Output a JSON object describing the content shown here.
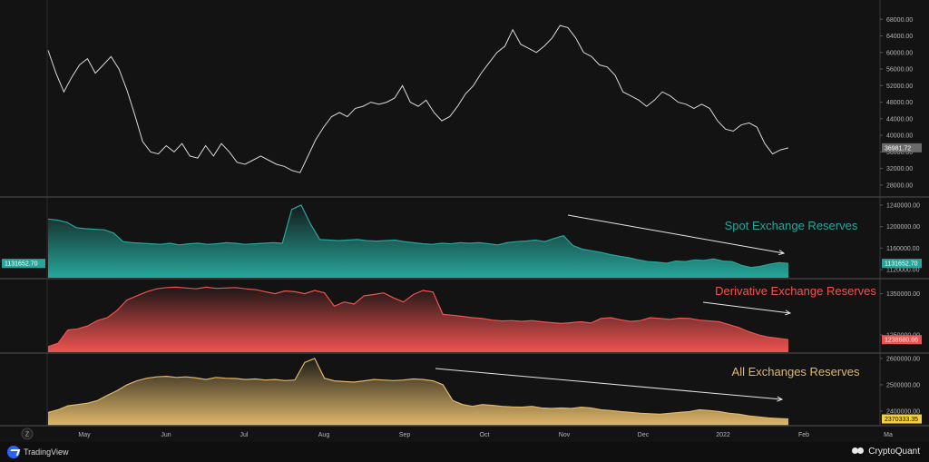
{
  "chart_data": [
    {
      "type": "line",
      "ylabel": "",
      "ylim": [
        26000,
        72000
      ],
      "yticks": [
        28000,
        32000,
        36000,
        40000,
        44000,
        48000,
        52000,
        56000,
        60000,
        64000,
        68000,
        72000
      ],
      "ytick_labels": [
        "28000.00",
        "32000.00",
        "36000.00",
        "40000.00",
        "44000.00",
        "48000.00",
        "52000.00",
        "56000.00",
        "60000.00",
        "64000.00",
        "68000.00",
        "72000.00"
      ],
      "last_value_label": "36981.72",
      "series": [
        {
          "color": "#d9d9d9",
          "values": [
            60500,
            55000,
            50500,
            54000,
            57000,
            58500,
            55000,
            57000,
            59000,
            56000,
            51000,
            45000,
            38500,
            36000,
            35500,
            37500,
            36000,
            38000,
            35000,
            34500,
            37500,
            35000,
            38000,
            36000,
            33500,
            33000,
            34000,
            35000,
            34000,
            33000,
            32500,
            31500,
            31000,
            35000,
            39000,
            42000,
            44500,
            45500,
            44500,
            46500,
            47000,
            48000,
            47500,
            48000,
            49000,
            52000,
            48000,
            47000,
            48500,
            45500,
            43500,
            44500,
            47000,
            50000,
            52000,
            55000,
            57500,
            60000,
            61500,
            65500,
            62000,
            61000,
            60000,
            61500,
            63500,
            66500,
            66000,
            63500,
            60000,
            59000,
            57000,
            56500,
            54500,
            50500,
            49500,
            48500,
            47000,
            48500,
            50500,
            49500,
            48000,
            47500,
            46500,
            47500,
            46500,
            43500,
            41500,
            41000,
            42500,
            43000,
            42000,
            38000,
            35500,
            36500,
            36981.72
          ]
        }
      ]
    },
    {
      "type": "area",
      "title": "Spot Exchange Reserves",
      "ylim": [
        1110000,
        1250000
      ],
      "yticks": [
        1120000,
        1160000,
        1200000,
        1240000
      ],
      "ytick_labels": [
        "1120000.00",
        "1160000.00",
        "1200000.00",
        "1240000.00"
      ],
      "last_value_label": "1131652.70",
      "series": [
        {
          "color": "#26a69a",
          "values": [
            1214000,
            1212000,
            1208000,
            1198000,
            1196000,
            1195000,
            1194000,
            1188000,
            1172000,
            1170000,
            1169000,
            1168000,
            1167000,
            1169000,
            1166000,
            1168000,
            1169000,
            1167000,
            1168000,
            1170000,
            1169000,
            1167000,
            1168000,
            1169000,
            1170000,
            1169000,
            1232000,
            1240000,
            1205000,
            1176000,
            1175000,
            1174000,
            1175000,
            1176000,
            1174000,
            1173000,
            1174000,
            1175000,
            1172000,
            1170000,
            1168000,
            1167000,
            1169000,
            1168000,
            1170000,
            1169000,
            1170000,
            1168000,
            1166000,
            1170000,
            1172000,
            1173000,
            1175000,
            1172000,
            1178000,
            1183000,
            1165000,
            1158000,
            1155000,
            1152000,
            1148000,
            1145000,
            1142000,
            1138000,
            1135000,
            1134000,
            1132000,
            1136000,
            1135000,
            1138000,
            1137000,
            1140000,
            1136000,
            1135000,
            1128000,
            1124000,
            1126000,
            1130000,
            1133000,
            1131652.7
          ]
        }
      ],
      "arrow": "down"
    },
    {
      "type": "area",
      "title": "Derivative Exchange Reserves",
      "ylim": [
        1215000,
        1380000
      ],
      "yticks": [
        1250000,
        1350000
      ],
      "ytick_labels": [
        "1250000.00",
        "1350000.00"
      ],
      "last_value_label": "1238680.66",
      "series": [
        {
          "color": "#ef5350",
          "values": [
            1222000,
            1230000,
            1262000,
            1265000,
            1272000,
            1285000,
            1292000,
            1310000,
            1335000,
            1345000,
            1355000,
            1362000,
            1365000,
            1366000,
            1364000,
            1362000,
            1366000,
            1363000,
            1364000,
            1365000,
            1362000,
            1360000,
            1355000,
            1350000,
            1357000,
            1355000,
            1350000,
            1358000,
            1352000,
            1320000,
            1330000,
            1325000,
            1345000,
            1348000,
            1352000,
            1340000,
            1330000,
            1348000,
            1358000,
            1354000,
            1300000,
            1298000,
            1295000,
            1292000,
            1290000,
            1286000,
            1284000,
            1285000,
            1283000,
            1285000,
            1282000,
            1280000,
            1278000,
            1280000,
            1282000,
            1279000,
            1290000,
            1292000,
            1287000,
            1283000,
            1285000,
            1292000,
            1290000,
            1288000,
            1291000,
            1290000,
            1286000,
            1284000,
            1282000,
            1275000,
            1268000,
            1258000,
            1250000,
            1245000,
            1242000,
            1238680.66
          ]
        }
      ],
      "arrow": "down"
    },
    {
      "type": "area",
      "title": "All Exchanges Reserves",
      "ylim": [
        2355000,
        2610000
      ],
      "yticks": [
        2400000,
        2500000,
        2600000
      ],
      "ytick_labels": [
        "2400000.00",
        "2500000.00",
        "2600000.00"
      ],
      "last_value_label": "2370333.35",
      "series": [
        {
          "color": "#e0b86a",
          "values": [
            2395000,
            2405000,
            2420000,
            2425000,
            2430000,
            2440000,
            2460000,
            2478000,
            2500000,
            2515000,
            2525000,
            2530000,
            2532000,
            2528000,
            2530000,
            2526000,
            2520000,
            2528000,
            2525000,
            2524000,
            2520000,
            2522000,
            2518000,
            2520000,
            2516000,
            2518000,
            2585000,
            2600000,
            2525000,
            2515000,
            2512000,
            2510000,
            2515000,
            2520000,
            2518000,
            2516000,
            2518000,
            2522000,
            2520000,
            2515000,
            2500000,
            2440000,
            2425000,
            2418000,
            2425000,
            2422000,
            2418000,
            2416000,
            2415000,
            2418000,
            2412000,
            2410000,
            2412000,
            2410000,
            2415000,
            2412000,
            2405000,
            2402000,
            2398000,
            2395000,
            2392000,
            2390000,
            2388000,
            2392000,
            2395000,
            2398000,
            2405000,
            2402000,
            2398000,
            2392000,
            2388000,
            2382000,
            2378000,
            2374000,
            2372000,
            2370333.35
          ]
        }
      ],
      "arrow": "down"
    }
  ],
  "x_axis": {
    "months": [
      "May",
      "Jun",
      "Jul",
      "Aug",
      "Sep",
      "Oct",
      "Nov",
      "Dec",
      "2022",
      "Feb",
      "Ma"
    ],
    "timezone_button": "Z"
  },
  "footer": {
    "left_brand": "TradingView",
    "right_brand": "CryptoQuant"
  },
  "colors": {
    "background": "#131313",
    "price": "#d9d9d9",
    "spot": "#26a69a",
    "derivative": "#ef5350",
    "all": "#e0b86a"
  }
}
